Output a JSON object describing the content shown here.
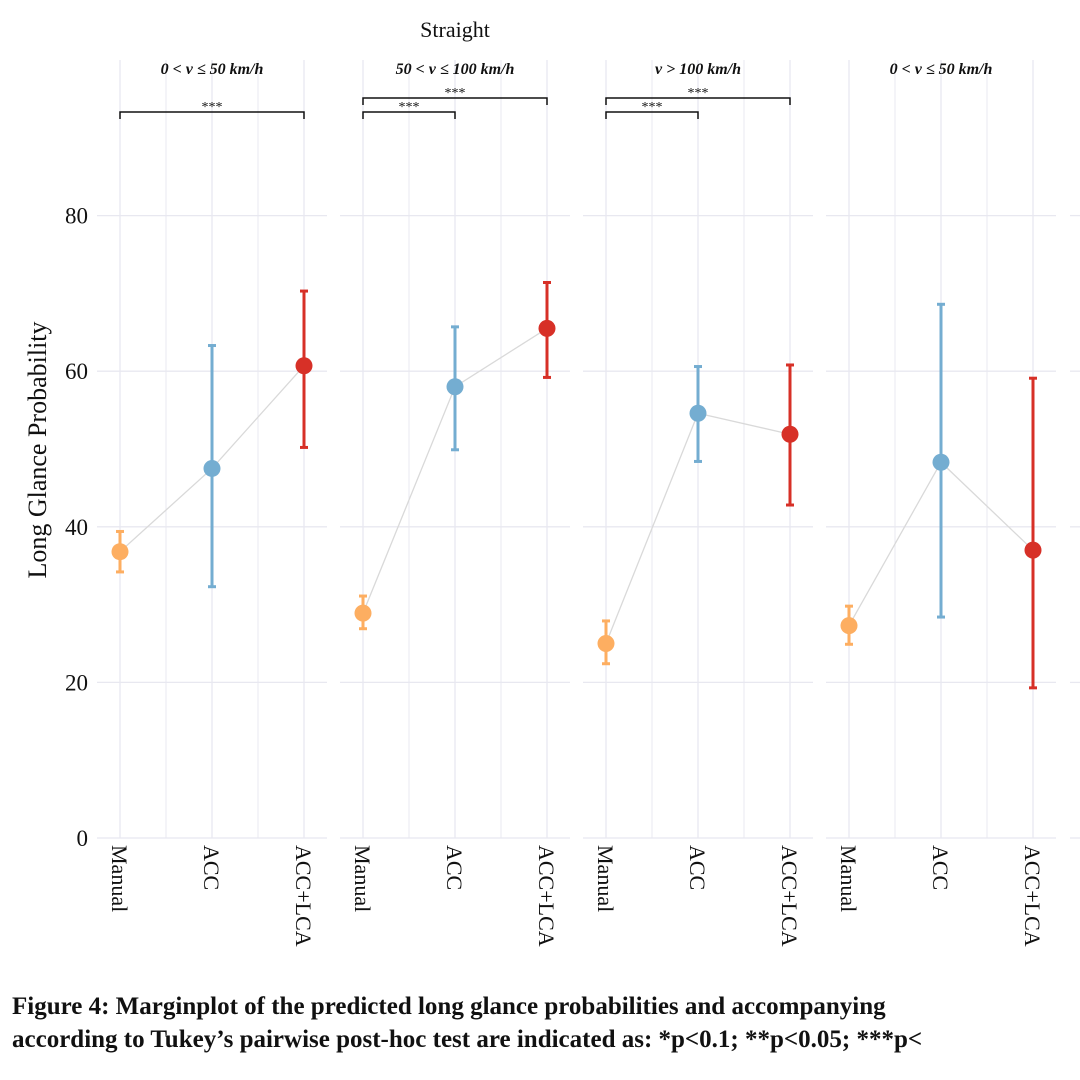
{
  "chart_data": {
    "type": "scatter",
    "subtype": "marginplot-with-error-bars",
    "group_title": "Straight",
    "ylabel": "Long Glance Probability",
    "ylim": [
      0,
      100
    ],
    "yticks": [
      0,
      20,
      40,
      60,
      80
    ],
    "categories": [
      "Manual",
      "ACC",
      "ACC+LCA"
    ],
    "colors": {
      "Manual": "#fdae61",
      "ACC": "#74add1",
      "ACC+LCA": "#d73027",
      "line": "#d9d9d9",
      "grid": "#e8e8f0"
    },
    "panels": [
      {
        "title": "0 < v ≤ 50 km/h",
        "points": [
          {
            "category": "Manual",
            "value": 36.8,
            "lower": 34.2,
            "upper": 39.4
          },
          {
            "category": "ACC",
            "value": 47.5,
            "lower": 32.3,
            "upper": 63.3
          },
          {
            "category": "ACC+LCA",
            "value": 60.7,
            "lower": 50.2,
            "upper": 70.3
          }
        ],
        "brackets": [
          {
            "from": "Manual",
            "to": "ACC+LCA",
            "label": "***",
            "level": 0
          }
        ]
      },
      {
        "title": "50 < v ≤ 100 km/h",
        "points": [
          {
            "category": "Manual",
            "value": 28.9,
            "lower": 26.9,
            "upper": 31.1
          },
          {
            "category": "ACC",
            "value": 58.0,
            "lower": 49.9,
            "upper": 65.7
          },
          {
            "category": "ACC+LCA",
            "value": 65.5,
            "lower": 59.2,
            "upper": 71.4
          }
        ],
        "brackets": [
          {
            "from": "Manual",
            "to": "ACC",
            "label": "***",
            "level": 0
          },
          {
            "from": "Manual",
            "to": "ACC+LCA",
            "label": "***",
            "level": 1
          }
        ]
      },
      {
        "title": "v > 100 km/h",
        "points": [
          {
            "category": "Manual",
            "value": 25.0,
            "lower": 22.4,
            "upper": 27.9
          },
          {
            "category": "ACC",
            "value": 54.6,
            "lower": 48.4,
            "upper": 60.6
          },
          {
            "category": "ACC+LCA",
            "value": 51.9,
            "lower": 42.8,
            "upper": 60.8
          }
        ],
        "brackets": [
          {
            "from": "Manual",
            "to": "ACC",
            "label": "***",
            "level": 0
          },
          {
            "from": "Manual",
            "to": "ACC+LCA",
            "label": "***",
            "level": 1
          }
        ]
      },
      {
        "title": "0 < v ≤ 50 km/h",
        "points": [
          {
            "category": "Manual",
            "value": 27.3,
            "lower": 24.9,
            "upper": 29.8
          },
          {
            "category": "ACC",
            "value": 48.3,
            "lower": 28.4,
            "upper": 68.6
          },
          {
            "category": "ACC+LCA",
            "value": 37.0,
            "lower": 19.3,
            "upper": 59.1
          }
        ],
        "brackets": []
      }
    ]
  },
  "caption": {
    "line1": "Figure 4: Marginplot of the predicted long glance probabilities and accompanying",
    "line2": "according to Tukey’s pairwise post-hoc test are indicated as: *p<0.1; **p<0.05; ***p<"
  }
}
